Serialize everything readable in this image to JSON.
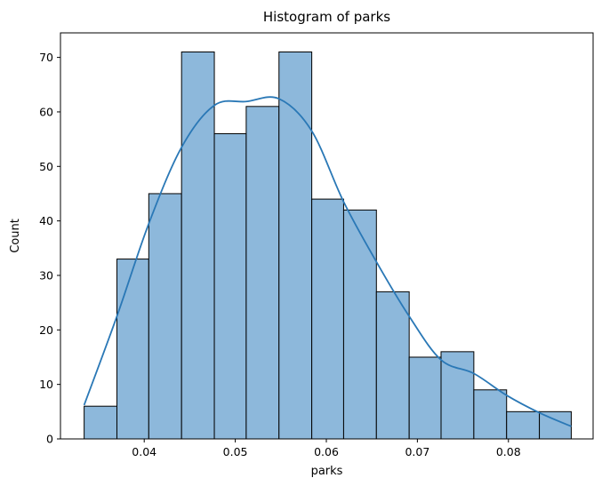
{
  "chart_data": {
    "type": "bar",
    "title": "Histogram of parks",
    "xlabel": "parks",
    "ylabel": "Count",
    "xlim": [
      0.0308,
      0.0893
    ],
    "ylim": [
      0,
      74.5
    ],
    "x_ticks": [
      "0.04",
      "0.05",
      "0.06",
      "0.07",
      "0.08"
    ],
    "x_tick_values": [
      0.04,
      0.05,
      0.06,
      0.07,
      0.08
    ],
    "y_ticks": [
      "0",
      "10",
      "20",
      "30",
      "40",
      "50",
      "60",
      "70"
    ],
    "y_tick_values": [
      0,
      10,
      20,
      30,
      40,
      50,
      60,
      70
    ],
    "bin_edges": [
      0.0334,
      0.037,
      0.0405,
      0.0441,
      0.0477,
      0.0512,
      0.0548,
      0.0584,
      0.0619,
      0.0655,
      0.0691,
      0.0726,
      0.0762,
      0.0798,
      0.0834,
      0.0869
    ],
    "counts": [
      6,
      33,
      45,
      71,
      56,
      61,
      71,
      44,
      42,
      27,
      15,
      16,
      9,
      5,
      5
    ],
    "kde": {
      "x": [
        0.0334,
        0.037,
        0.0405,
        0.0441,
        0.0477,
        0.0512,
        0.0548,
        0.0584,
        0.0619,
        0.0655,
        0.0691,
        0.0726,
        0.0762,
        0.0798,
        0.0834,
        0.0869
      ],
      "y": [
        6.2,
        22.5,
        39.5,
        53.5,
        61.2,
        61.9,
        62.4,
        56.5,
        43.5,
        32.5,
        22.5,
        14.5,
        12.0,
        8.0,
        4.8,
        2.3
      ]
    },
    "bar_color": "#8db8db",
    "bar_edge_color": "#000000",
    "kde_color": "#2a78b6",
    "grid": false
  }
}
